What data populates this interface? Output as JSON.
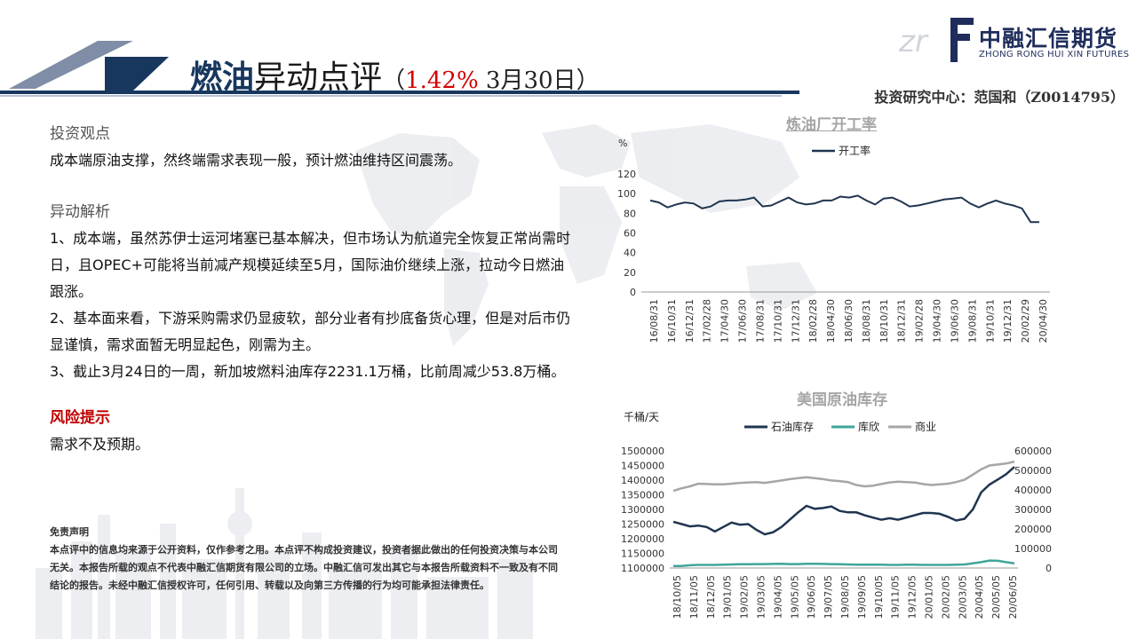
{
  "header": {
    "title_main": "燃油",
    "title_rest": "异动点评",
    "title_paren_open": "（",
    "title_pct": "1.42%",
    "title_date": " 3月30日",
    "title_paren_close": "）",
    "author": "投资研究中心：范国和（Z0014795）",
    "colors": {
      "navy": "#17375e",
      "red": "#d40000"
    }
  },
  "logo": {
    "cn": "中融汇信期货",
    "en": "ZHONG RONG HUI XIN FUTURES",
    "mark": "ZRF"
  },
  "body": {
    "view_heading": "投资观点",
    "view_text": "成本端原油支撑，然终端需求表现一般，预计燃油维持区间震荡。",
    "analysis_heading": "异动解析",
    "analysis_items": [
      "1、成本端，虽然苏伊士运河堵塞已基本解决，但市场认为航道完全恢复正常尚需时日，且OPEC+可能将当前减产规模延续至5月，国际油价继续上涨，拉动今日燃油跟涨。",
      "2、基本面来看，下游采购需求仍显疲软，部分业者有抄底备货心理，但是对后市仍显谨慎，需求面暂无明显起色，刚需为主。",
      "3、截止3月24日的一周，新加坡燃料油库存2231.1万桶，比前周减少53.8万桶。"
    ],
    "risk_heading": "风险提示",
    "risk_text": "需求不及预期。"
  },
  "disclaimer": {
    "heading": "免责声明",
    "text": "本点评中的信息均来源于公开资料，仅作参考之用。本点评不构成投资建议，投资者据此做出的任何投资决策与本公司无关。本报告所载的观点不代表中融汇信期货有限公司的立场。中融汇信可发出其它与本报告所载资料不一致及有不同结论的报告。未经中融汇信授权许可，任何引用、转载以及向第三方传播的行为均可能承担法律责任。"
  },
  "chart_data": [
    {
      "type": "line",
      "title": "炼油厂开工率",
      "ylabel": "%",
      "ylim": [
        0,
        120
      ],
      "yticks": [
        "0",
        "20",
        "40",
        "60",
        "80",
        "100",
        "120"
      ],
      "x_tick_labels": [
        "16/08/31",
        "16/10/31",
        "16/12/31",
        "17/02/28",
        "17/04/30",
        "17/06/30",
        "17/08/31",
        "17/10/31",
        "17/12/31",
        "18/02/28",
        "18/04/30",
        "18/06/30",
        "18/08/31",
        "18/10/31",
        "18/12/31",
        "19/02/28",
        "19/04/30",
        "19/06/30",
        "19/08/31",
        "19/10/31",
        "19/12/31",
        "20/02/29",
        "20/04/30"
      ],
      "series": [
        {
          "name": "开工率",
          "color": "#1f3550",
          "values": [
            93,
            91,
            86,
            89,
            91,
            90,
            85,
            87,
            92,
            93,
            93,
            94,
            96,
            87,
            88,
            92,
            96,
            91,
            89,
            90,
            93,
            93,
            97,
            96,
            98,
            93,
            89,
            95,
            96,
            92,
            87,
            88,
            90,
            92,
            94,
            95,
            96,
            90,
            86,
            90,
            93,
            90,
            88,
            85,
            71,
            71
          ]
        }
      ]
    },
    {
      "type": "line",
      "title": "美国原油库存",
      "ylabel": "千桶/天",
      "ylim_left": [
        1100000,
        1500000
      ],
      "ylim_right": [
        0,
        600000
      ],
      "yticks_left": [
        "1100000",
        "1150000",
        "1200000",
        "1250000",
        "1300000",
        "1350000",
        "1400000",
        "1450000",
        "1500000"
      ],
      "yticks_right": [
        "0",
        "100000",
        "200000",
        "300000",
        "400000",
        "500000",
        "600000"
      ],
      "x_tick_labels": [
        "18/10/05",
        "18/11/05",
        "18/12/05",
        "19/01/05",
        "19/02/05",
        "19/03/05",
        "19/04/05",
        "19/05/05",
        "19/06/05",
        "19/07/05",
        "19/08/05",
        "19/09/05",
        "19/10/05",
        "19/11/05",
        "19/12/05",
        "20/01/05",
        "20/02/05",
        "20/03/05",
        "20/04/05",
        "20/05/05",
        "20/06/05"
      ],
      "series": [
        {
          "name": "石油库存",
          "color": "#1f3550",
          "axis": "left",
          "values": [
            1258000,
            1250000,
            1242000,
            1245000,
            1240000,
            1225000,
            1240000,
            1255000,
            1248000,
            1250000,
            1230000,
            1215000,
            1222000,
            1240000,
            1265000,
            1290000,
            1312000,
            1302000,
            1305000,
            1310000,
            1295000,
            1290000,
            1290000,
            1280000,
            1272000,
            1265000,
            1270000,
            1265000,
            1272000,
            1280000,
            1288000,
            1288000,
            1285000,
            1275000,
            1262000,
            1268000,
            1300000,
            1358000,
            1385000,
            1402000,
            1420000,
            1445000
          ]
        },
        {
          "name": "库欣",
          "color": "#3fa59a",
          "axis": "right",
          "values": [
            10000,
            10000,
            14000,
            16000,
            16000,
            16000,
            17000,
            18000,
            19000,
            19000,
            20000,
            20000,
            21000,
            22000,
            20000,
            20000,
            22000,
            22000,
            21000,
            20000,
            19000,
            18000,
            17000,
            17000,
            17000,
            17000,
            16000,
            16000,
            17000,
            17000,
            16000,
            16000,
            16000,
            16000,
            17000,
            18000,
            24000,
            30000,
            38000,
            37000,
            30000,
            24000
          ]
        },
        {
          "name": "商业",
          "color": "#a6a6a6",
          "axis": "right",
          "values": [
            395000,
            408000,
            418000,
            432000,
            430000,
            428000,
            428000,
            432000,
            436000,
            438000,
            440000,
            436000,
            442000,
            448000,
            455000,
            460000,
            465000,
            460000,
            455000,
            448000,
            445000,
            440000,
            425000,
            418000,
            422000,
            430000,
            438000,
            442000,
            440000,
            438000,
            430000,
            425000,
            428000,
            432000,
            440000,
            452000,
            478000,
            505000,
            525000,
            530000,
            535000,
            545000
          ]
        }
      ]
    }
  ]
}
